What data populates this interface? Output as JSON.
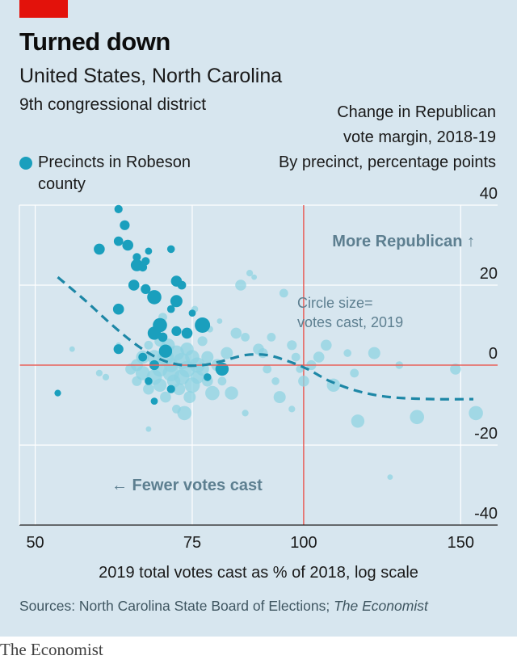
{
  "header": {
    "title": "Turned down",
    "subtitle": "United States, North Carolina",
    "district": "9th congressional district"
  },
  "legend": {
    "label": "Precincts in Robeson county"
  },
  "footer": {
    "xlabel_main": "2019 total votes cast as % of 2018,",
    "xlabel_scale": "log scale",
    "source_prefix": "Sources: North Carolina State Board of Elections;",
    "source_italic": "The Economist",
    "brand": "The Economist"
  },
  "colors": {
    "background": "#d7e6ef",
    "robeson": "#1a9fbd",
    "other": "#8fd3e1",
    "zero_line": "#e9605a",
    "trend": "#1d87a6",
    "annotation": "#5d7f90",
    "grid": "#ffffff"
  },
  "chart_data": {
    "type": "scatter",
    "ylabel_lines": [
      "Change in Republican",
      "vote margin, 2018-19",
      "By precinct, percentage points"
    ],
    "xlabel": "2019 total votes cast as % of 2018, log scale",
    "x_scale": "log",
    "xlim": [
      48,
      165
    ],
    "ylim": [
      -40,
      40
    ],
    "x_ticks": [
      50,
      75,
      100,
      150
    ],
    "y_ticks": [
      40,
      20,
      0,
      -20,
      -40
    ],
    "reference_lines": {
      "x": 100,
      "y": 0
    },
    "annotations": [
      "More Republican ↑",
      "← Fewer votes cast",
      "Circle size=",
      "votes cast, 2019"
    ],
    "trend_line": {
      "x": [
        53,
        57,
        61,
        65,
        69,
        73,
        77,
        81,
        86,
        91,
        96,
        101,
        107,
        115,
        125,
        140,
        155
      ],
      "y": [
        22,
        16,
        10,
        5,
        1.5,
        0,
        0,
        1,
        2.5,
        2.5,
        1,
        -1,
        -4,
        -6.5,
        -8,
        -8.5,
        -8.5
      ]
    },
    "series": [
      {
        "name": "Precincts in Robeson county",
        "points": [
          {
            "x": 53,
            "y": -7,
            "size": 1.2
          },
          {
            "x": 59,
            "y": 29,
            "size": 2
          },
          {
            "x": 62,
            "y": 39,
            "size": 1.5
          },
          {
            "x": 63,
            "y": 35,
            "size": 1.8
          },
          {
            "x": 62,
            "y": 31,
            "size": 1.7
          },
          {
            "x": 63.5,
            "y": 30,
            "size": 2
          },
          {
            "x": 65,
            "y": 27,
            "size": 1.5
          },
          {
            "x": 67,
            "y": 28.5,
            "size": 1.3
          },
          {
            "x": 65,
            "y": 25,
            "size": 2.2
          },
          {
            "x": 66,
            "y": 24.5,
            "size": 1.6
          },
          {
            "x": 66.5,
            "y": 26,
            "size": 1.5
          },
          {
            "x": 71,
            "y": 29,
            "size": 1.4
          },
          {
            "x": 64.5,
            "y": 20,
            "size": 2
          },
          {
            "x": 66.5,
            "y": 19,
            "size": 1.8
          },
          {
            "x": 72,
            "y": 21,
            "size": 2
          },
          {
            "x": 73,
            "y": 20,
            "size": 1.6
          },
          {
            "x": 68,
            "y": 17,
            "size": 2.6
          },
          {
            "x": 72,
            "y": 16,
            "size": 2.2
          },
          {
            "x": 71,
            "y": 14,
            "size": 1.4
          },
          {
            "x": 62,
            "y": 14,
            "size": 2
          },
          {
            "x": 75,
            "y": 13,
            "size": 1.3
          },
          {
            "x": 77,
            "y": 10,
            "size": 2.8
          },
          {
            "x": 69,
            "y": 10,
            "size": 2.6
          },
          {
            "x": 68,
            "y": 8,
            "size": 2.4
          },
          {
            "x": 72,
            "y": 8.5,
            "size": 1.8
          },
          {
            "x": 74,
            "y": 8,
            "size": 2
          },
          {
            "x": 69.5,
            "y": 7,
            "size": 1.7
          },
          {
            "x": 70,
            "y": 3.5,
            "size": 2.4
          },
          {
            "x": 62,
            "y": 4,
            "size": 1.8
          },
          {
            "x": 66,
            "y": 2,
            "size": 1.6
          },
          {
            "x": 68,
            "y": 0,
            "size": 1.8
          },
          {
            "x": 81,
            "y": -1,
            "size": 2.4
          },
          {
            "x": 67,
            "y": -4,
            "size": 1.4
          },
          {
            "x": 68,
            "y": -9,
            "size": 1.3
          },
          {
            "x": 71,
            "y": -6,
            "size": 1.5
          },
          {
            "x": 78,
            "y": -3,
            "size": 1.4
          }
        ]
      },
      {
        "name": "Other precincts",
        "points": [
          {
            "x": 55,
            "y": 4,
            "size": 1
          },
          {
            "x": 59,
            "y": -2,
            "size": 1.2
          },
          {
            "x": 62,
            "y": 5,
            "size": 1
          },
          {
            "x": 64,
            "y": -1,
            "size": 2
          },
          {
            "x": 65,
            "y": 0,
            "size": 2.2
          },
          {
            "x": 65,
            "y": -4,
            "size": 1.8
          },
          {
            "x": 66,
            "y": 2,
            "size": 2.4
          },
          {
            "x": 66,
            "y": -2,
            "size": 2.6
          },
          {
            "x": 67,
            "y": -6,
            "size": 2
          },
          {
            "x": 67,
            "y": -16,
            "size": 1
          },
          {
            "x": 67,
            "y": 5,
            "size": 1.6
          },
          {
            "x": 68,
            "y": 2,
            "size": 2.6
          },
          {
            "x": 68,
            "y": -3,
            "size": 2.8
          },
          {
            "x": 69,
            "y": 6,
            "size": 2
          },
          {
            "x": 69,
            "y": -1,
            "size": 2.8
          },
          {
            "x": 69,
            "y": -5,
            "size": 2.4
          },
          {
            "x": 69.5,
            "y": 12,
            "size": 1.6
          },
          {
            "x": 70,
            "y": 2,
            "size": 3
          },
          {
            "x": 70,
            "y": -8,
            "size": 2
          },
          {
            "x": 70.5,
            "y": 5,
            "size": 2.4
          },
          {
            "x": 71,
            "y": -2,
            "size": 3
          },
          {
            "x": 71,
            "y": 0,
            "size": 2.6
          },
          {
            "x": 71.5,
            "y": -4,
            "size": 2.4
          },
          {
            "x": 72,
            "y": 3,
            "size": 2.8
          },
          {
            "x": 72,
            "y": -11,
            "size": 1.6
          },
          {
            "x": 72.5,
            "y": -6,
            "size": 2.2
          },
          {
            "x": 73,
            "y": 1,
            "size": 3
          },
          {
            "x": 73,
            "y": -3,
            "size": 2.8
          },
          {
            "x": 73.5,
            "y": -12,
            "size": 2.6
          },
          {
            "x": 74,
            "y": 4,
            "size": 2.4
          },
          {
            "x": 74,
            "y": -1,
            "size": 3
          },
          {
            "x": 74.5,
            "y": -8,
            "size": 2.2
          },
          {
            "x": 75,
            "y": 2,
            "size": 2.6
          },
          {
            "x": 75,
            "y": -5,
            "size": 2.8
          },
          {
            "x": 75.5,
            "y": 14,
            "size": 1.2
          },
          {
            "x": 76,
            "y": 0,
            "size": 2.8
          },
          {
            "x": 76,
            "y": -3,
            "size": 2.4
          },
          {
            "x": 77,
            "y": 6,
            "size": 1.8
          },
          {
            "x": 77,
            "y": -1,
            "size": 2.4
          },
          {
            "x": 78,
            "y": 2,
            "size": 2.2
          },
          {
            "x": 78,
            "y": -4,
            "size": 2
          },
          {
            "x": 78.5,
            "y": 9,
            "size": 1.2
          },
          {
            "x": 79,
            "y": -7,
            "size": 2.6
          },
          {
            "x": 80,
            "y": 0,
            "size": 2.2
          },
          {
            "x": 80.5,
            "y": 11,
            "size": 1
          },
          {
            "x": 81,
            "y": -4,
            "size": 1.6
          },
          {
            "x": 82,
            "y": 3,
            "size": 2.2
          },
          {
            "x": 83,
            "y": -7,
            "size": 2.4
          },
          {
            "x": 84,
            "y": 8,
            "size": 2
          },
          {
            "x": 85,
            "y": 20,
            "size": 2
          },
          {
            "x": 86,
            "y": 7,
            "size": 1.6
          },
          {
            "x": 87,
            "y": 23,
            "size": 1.2
          },
          {
            "x": 88,
            "y": 22,
            "size": 1
          },
          {
            "x": 89,
            "y": 4,
            "size": 2
          },
          {
            "x": 90,
            "y": 3,
            "size": 1.8
          },
          {
            "x": 91,
            "y": -1,
            "size": 1.6
          },
          {
            "x": 92,
            "y": 7,
            "size": 1.6
          },
          {
            "x": 93,
            "y": -4,
            "size": 1.4
          },
          {
            "x": 94,
            "y": -8,
            "size": 2.2
          },
          {
            "x": 95,
            "y": 18,
            "size": 1.6
          },
          {
            "x": 97,
            "y": 5,
            "size": 1.8
          },
          {
            "x": 98,
            "y": 2,
            "size": 1.6
          },
          {
            "x": 99,
            "y": -1,
            "size": 1.4
          },
          {
            "x": 100,
            "y": -4,
            "size": 2
          },
          {
            "x": 102,
            "y": 0,
            "size": 1.8
          },
          {
            "x": 104,
            "y": 2,
            "size": 2
          },
          {
            "x": 106,
            "y": 5,
            "size": 2
          },
          {
            "x": 108,
            "y": -5,
            "size": 2.4
          },
          {
            "x": 112,
            "y": 3,
            "size": 1.4
          },
          {
            "x": 114,
            "y": -2,
            "size": 1.6
          },
          {
            "x": 115,
            "y": -14,
            "size": 2.4
          },
          {
            "x": 120,
            "y": 3,
            "size": 2.2
          },
          {
            "x": 125,
            "y": -28,
            "size": 1
          },
          {
            "x": 128,
            "y": 0,
            "size": 1.4
          },
          {
            "x": 134,
            "y": -13,
            "size": 2.6
          },
          {
            "x": 148,
            "y": -1,
            "size": 2
          },
          {
            "x": 156,
            "y": -12,
            "size": 2.6
          },
          {
            "x": 86,
            "y": -12,
            "size": 1.2
          },
          {
            "x": 97,
            "y": -11,
            "size": 1.2
          },
          {
            "x": 60,
            "y": -3,
            "size": 1.2
          }
        ]
      }
    ]
  }
}
